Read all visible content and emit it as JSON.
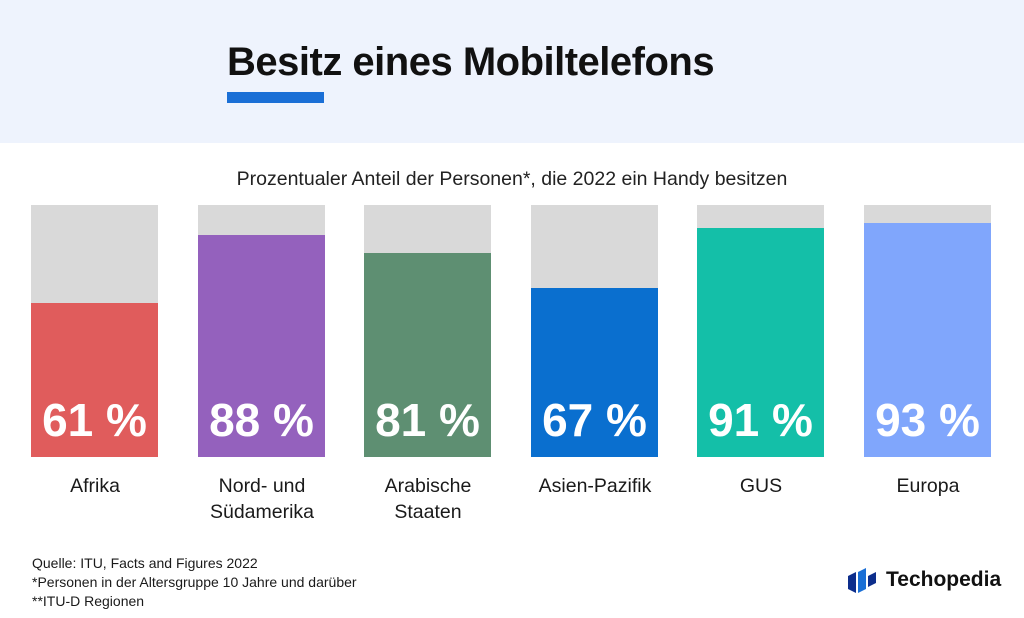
{
  "header": {
    "title": "Besitz eines Mobiltelefons"
  },
  "chart_data": {
    "type": "bar",
    "title": "Prozentualer Anteil der Personen*, die 2022 ein Handy besitzen",
    "categories": [
      "Afrika",
      "Nord- und Südamerika",
      "Arabische Staaten",
      "Asien-Pazifik",
      "GUS",
      "Europa"
    ],
    "category_lines": [
      [
        "Afrika"
      ],
      [
        "Nord- und",
        "Südamerika"
      ],
      [
        "Arabische",
        "Staaten"
      ],
      [
        "Asien-Pazifik"
      ],
      [
        "GUS"
      ],
      [
        "Europa"
      ]
    ],
    "values": [
      61,
      88,
      81,
      67,
      91,
      93
    ],
    "value_labels": [
      "61 %",
      "88 %",
      "81 %",
      "67 %",
      "91 %",
      "93 %"
    ],
    "colors": [
      "#e05c5c",
      "#9461bd",
      "#5e8f72",
      "#0a6fcf",
      "#14bfa8",
      "#80a6fc"
    ],
    "background_color": "#d9d9d9",
    "ylim": [
      0,
      100
    ]
  },
  "footer": {
    "notes": [
      "Quelle: ITU, Facts and Figures 2022",
      "*Personen in der Altersgruppe 10 Jahre und darüber",
      "**ITU-D Regionen"
    ],
    "logo": {
      "text": "Techopedia",
      "icon": "techopedia-logo-icon",
      "colors": [
        "#1a6fd6",
        "#0d2e8c"
      ]
    }
  }
}
